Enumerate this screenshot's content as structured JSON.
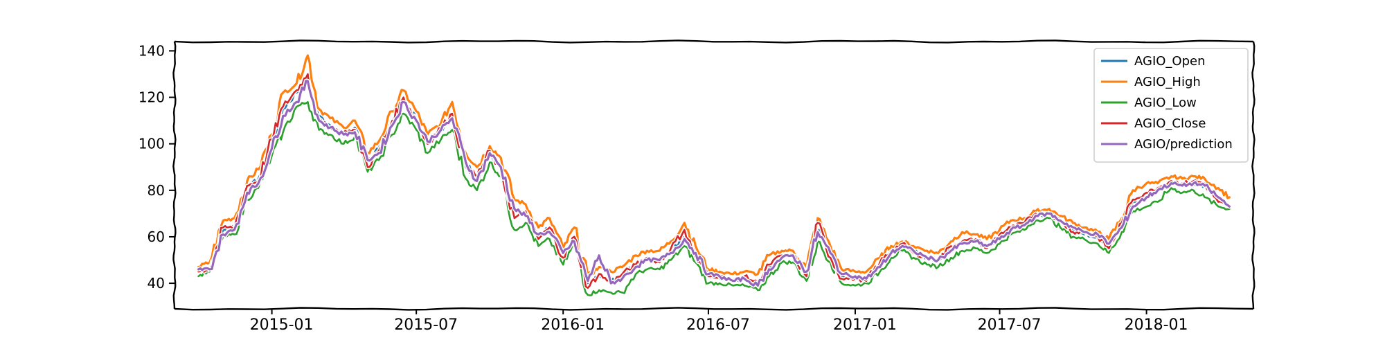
{
  "chart_data": {
    "type": "line",
    "title": "",
    "xlabel": "",
    "ylabel": "",
    "xlim": [
      "2014-09-01",
      "2018-05-15"
    ],
    "ylim": [
      29,
      144
    ],
    "x_ticks": [
      "2015-01",
      "2015-07",
      "2016-01",
      "2016-07",
      "2017-01",
      "2017-07",
      "2018-01"
    ],
    "y_ticks": [
      40,
      60,
      80,
      100,
      120,
      140
    ],
    "legend_position": "top-right",
    "grid": false,
    "style": "xkcd",
    "dates": [
      "2014-10-01",
      "2014-10-15",
      "2014-11-01",
      "2014-11-15",
      "2014-12-01",
      "2014-12-15",
      "2015-01-01",
      "2015-01-15",
      "2015-02-01",
      "2015-02-15",
      "2015-03-01",
      "2015-03-15",
      "2015-04-01",
      "2015-04-15",
      "2015-05-01",
      "2015-05-15",
      "2015-06-01",
      "2015-06-15",
      "2015-07-01",
      "2015-07-15",
      "2015-08-01",
      "2015-08-15",
      "2015-09-01",
      "2015-09-15",
      "2015-10-01",
      "2015-10-15",
      "2015-11-01",
      "2015-11-15",
      "2015-12-01",
      "2015-12-15",
      "2016-01-01",
      "2016-01-15",
      "2016-02-01",
      "2016-02-15",
      "2016-03-01",
      "2016-03-15",
      "2016-04-01",
      "2016-04-15",
      "2016-05-01",
      "2016-05-15",
      "2016-06-01",
      "2016-06-15",
      "2016-07-01",
      "2016-07-15",
      "2016-08-01",
      "2016-08-15",
      "2016-09-01",
      "2016-09-15",
      "2016-10-01",
      "2016-10-15",
      "2016-11-01",
      "2016-11-15",
      "2016-12-01",
      "2016-12-15",
      "2017-01-01",
      "2017-01-15",
      "2017-02-01",
      "2017-02-15",
      "2017-03-01",
      "2017-03-15",
      "2017-04-01",
      "2017-04-15",
      "2017-05-01",
      "2017-05-15",
      "2017-06-01",
      "2017-06-15",
      "2017-07-01",
      "2017-07-15",
      "2017-08-01",
      "2017-08-15",
      "2017-09-01",
      "2017-09-15",
      "2017-10-01",
      "2017-10-15",
      "2017-11-01",
      "2017-11-15",
      "2017-12-01",
      "2017-12-15",
      "2018-01-01",
      "2018-01-15",
      "2018-02-01",
      "2018-02-15",
      "2018-03-01",
      "2018-03-15",
      "2018-04-01",
      "2018-04-15"
    ],
    "series": [
      {
        "name": "AGIO_Open",
        "color": "#1f77b4",
        "width": 2.6,
        "values": [
          45,
          47,
          63,
          65,
          80,
          85,
          100,
          115,
          122,
          128,
          112,
          108,
          104,
          107,
          92,
          98,
          110,
          118,
          111,
          100,
          106,
          112,
          92,
          85,
          96,
          90,
          72,
          70,
          60,
          64,
          52,
          60,
          40,
          43,
          41,
          43,
          48,
          50,
          50,
          54,
          60,
          52,
          43,
          42,
          41,
          42,
          40,
          47,
          52,
          52,
          44,
          63,
          52,
          43,
          42,
          42,
          48,
          54,
          57,
          54,
          51,
          50,
          55,
          58,
          58,
          56,
          60,
          64,
          66,
          69,
          70,
          67,
          63,
          61,
          60,
          56,
          65,
          75,
          78,
          80,
          84,
          82,
          83,
          82,
          76,
          73
        ]
      },
      {
        "name": "AGIO_High",
        "color": "#ff7f0e",
        "width": 3.2,
        "values": [
          47,
          49,
          67,
          68,
          84,
          89,
          104,
          122,
          126,
          138,
          115,
          111,
          107,
          110,
          96,
          101,
          114,
          123,
          114,
          104,
          109,
          118,
          96,
          90,
          99,
          94,
          76,
          74,
          64,
          68,
          55,
          64,
          43,
          47,
          45,
          47,
          52,
          54,
          54,
          58,
          66,
          56,
          46,
          45,
          44,
          45,
          44,
          52,
          54,
          54,
          47,
          68,
          56,
          46,
          45,
          45,
          51,
          56,
          58,
          56,
          54,
          53,
          58,
          62,
          61,
          59,
          63,
          67,
          68,
          71,
          72,
          69,
          66,
          64,
          62,
          59,
          68,
          80,
          83,
          83,
          86,
          85,
          86,
          85,
          81,
          77
        ]
      },
      {
        "name": "AGIO_Low",
        "color": "#2ca02c",
        "width": 2.6,
        "values": [
          43,
          45,
          60,
          61,
          76,
          81,
          95,
          105,
          116,
          118,
          106,
          104,
          100,
          103,
          88,
          93,
          104,
          113,
          106,
          96,
          102,
          106,
          85,
          80,
          92,
          86,
          63,
          66,
          56,
          59,
          48,
          57,
          35,
          37,
          36,
          36,
          44,
          46,
          46,
          50,
          56,
          49,
          40,
          40,
          39,
          39,
          37,
          43,
          49,
          49,
          41,
          58,
          49,
          40,
          39,
          40,
          45,
          51,
          54,
          51,
          48,
          47,
          51,
          54,
          55,
          53,
          57,
          61,
          63,
          67,
          68,
          64,
          60,
          59,
          57,
          53,
          62,
          71,
          73,
          75,
          81,
          79,
          80,
          77,
          73,
          72
        ]
      },
      {
        "name": "AGIO_Close",
        "color": "#d62728",
        "width": 2.6,
        "values": [
          45,
          46,
          64,
          64,
          82,
          84,
          102,
          116,
          123,
          130,
          110,
          107,
          105,
          106,
          90,
          97,
          110,
          120,
          110,
          100,
          107,
          113,
          90,
          86,
          97,
          88,
          68,
          71,
          59,
          64,
          51,
          60,
          38,
          44,
          40,
          44,
          48,
          51,
          49,
          55,
          63,
          51,
          43,
          43,
          41,
          43,
          40,
          48,
          52,
          52,
          43,
          66,
          51,
          42,
          42,
          41,
          49,
          54,
          57,
          53,
          51,
          50,
          56,
          58,
          59,
          55,
          61,
          64,
          66,
          70,
          70,
          67,
          62,
          62,
          60,
          55,
          66,
          76,
          79,
          81,
          84,
          83,
          84,
          83,
          75,
          73
        ]
      },
      {
        "name": "AGIO/prediction",
        "color": "#9467bd",
        "width": 3.2,
        "values": [
          46,
          46,
          61,
          63,
          79,
          83,
          98,
          112,
          118,
          127,
          110,
          107,
          104,
          105,
          93,
          96,
          108,
          118,
          110,
          101,
          106,
          111,
          92,
          84,
          96,
          90,
          72,
          69,
          61,
          62,
          53,
          58,
          41,
          52,
          40,
          42,
          47,
          50,
          50,
          53,
          59,
          53,
          44,
          43,
          41,
          42,
          39,
          46,
          51,
          52,
          45,
          62,
          53,
          44,
          43,
          42,
          47,
          53,
          56,
          54,
          51,
          50,
          54,
          57,
          58,
          56,
          59,
          63,
          65,
          69,
          70,
          67,
          64,
          62,
          61,
          57,
          64,
          73,
          77,
          80,
          83,
          82,
          83,
          82,
          77,
          73
        ]
      }
    ]
  }
}
